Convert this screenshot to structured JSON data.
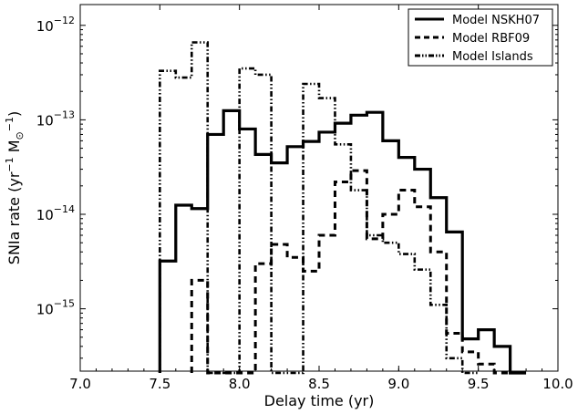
{
  "chart_data": {
    "type": "line",
    "title": "",
    "xlabel": "Delay time (yr)",
    "ylabel": "SNIa rate (yr",
    "ylabel_sup1": "−1",
    "ylabel_mid": " M",
    "ylabel_sub": "⊙",
    "ylabel_sup2": "−1",
    "ylabel_end": ")",
    "xlim": [
      7.0,
      10.0
    ],
    "ylim_log10": [
      -15.66,
      -11.78
    ],
    "yscale": "log",
    "grid": false,
    "legend_position": "top-right",
    "x_ticks": [
      {
        "value": 7.0,
        "label": "7.0"
      },
      {
        "value": 7.5,
        "label": "7.5"
      },
      {
        "value": 8.0,
        "label": "8.0"
      },
      {
        "value": 8.5,
        "label": "8.5"
      },
      {
        "value": 9.0,
        "label": "9.0"
      },
      {
        "value": 9.5,
        "label": "9.5"
      },
      {
        "value": 10.0,
        "label": "10.0"
      }
    ],
    "y_ticks": [
      {
        "exp": -15,
        "base": "10",
        "sup": "−15"
      },
      {
        "exp": -14,
        "base": "10",
        "sup": "−14"
      },
      {
        "exp": -13,
        "base": "10",
        "sup": "−13"
      },
      {
        "exp": -12,
        "base": "10",
        "sup": "−12"
      }
    ],
    "series": [
      {
        "name": "Model NSKH07",
        "style": "solid",
        "color": "#000000",
        "x": [
          7.5,
          7.6,
          7.7,
          7.8,
          7.9,
          8.0,
          8.1,
          8.2,
          8.3,
          8.4,
          8.5,
          8.6,
          8.7,
          8.8,
          8.9,
          9.0,
          9.1,
          9.2,
          9.3,
          9.4,
          9.5,
          9.6,
          9.7
        ],
        "y": [
          3.2e-15,
          1.25e-14,
          1.15e-14,
          7e-14,
          1.25e-13,
          8e-14,
          4.3e-14,
          3.5e-14,
          5.2e-14,
          5.9e-14,
          7.4e-14,
          9.2e-14,
          1.12e-13,
          1.2e-13,
          6e-14,
          4e-14,
          3e-14,
          1.5e-14,
          6.5e-15,
          4.8e-16,
          6e-16,
          4e-16,
          2e-16
        ]
      },
      {
        "name": "Model RBF09",
        "style": "dashed",
        "color": "#000000",
        "x": [
          7.7,
          7.8,
          8.1,
          8.2,
          8.3,
          8.4,
          8.5,
          8.6,
          8.7,
          8.8,
          8.9,
          9.0,
          9.1,
          9.2,
          9.3,
          9.4,
          9.5,
          9.6
        ],
        "y": [
          2e-15,
          2e-16,
          3e-15,
          4.8e-15,
          3.5e-15,
          2.5e-15,
          6e-15,
          2.2e-14,
          2.9e-14,
          5.5e-15,
          1e-14,
          1.8e-14,
          1.2e-14,
          4e-15,
          5.5e-16,
          3.5e-16,
          2.6e-16,
          2e-16
        ]
      },
      {
        "name": "Model Islands",
        "style": "dashdotdot",
        "color": "#000000",
        "x": [
          7.5,
          7.6,
          7.7,
          8.0,
          8.1,
          8.4,
          8.5,
          8.6,
          8.7,
          8.8,
          8.9,
          9.0,
          9.1,
          9.2,
          9.3,
          9.4
        ],
        "y": [
          3.3e-13,
          2.8e-13,
          6.6e-13,
          3.5e-13,
          3e-13,
          2.4e-13,
          1.7e-13,
          5.5e-14,
          1.8e-14,
          6e-15,
          5e-15,
          3.8e-15,
          2.6e-15,
          1.1e-15,
          3e-16,
          2e-16
        ]
      }
    ]
  }
}
